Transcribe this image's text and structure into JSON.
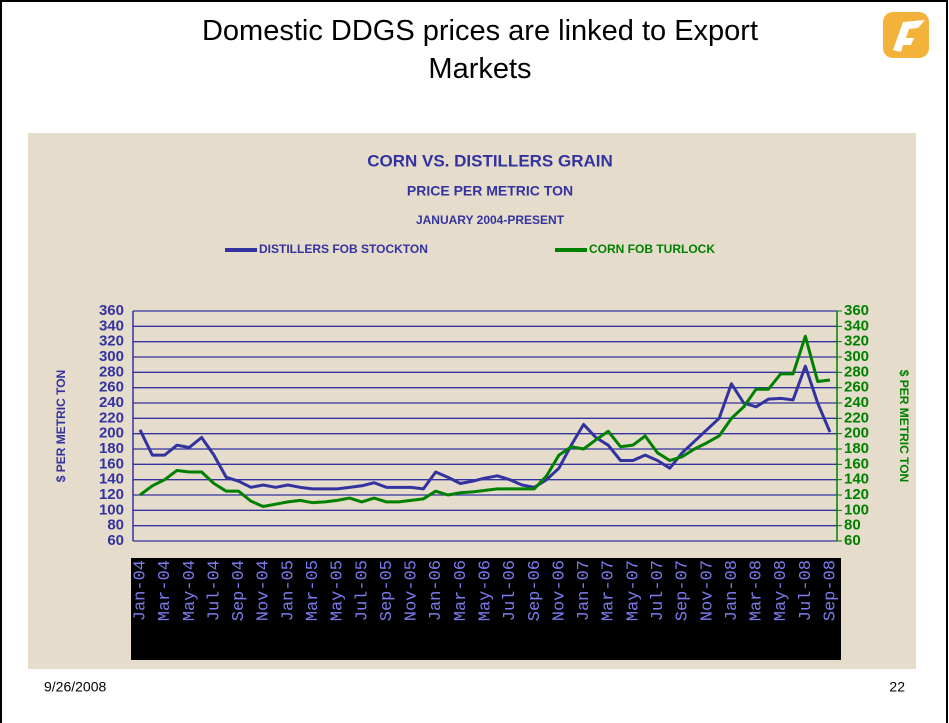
{
  "slide": {
    "title": "Domestic DDGS prices are linked to Export Markets",
    "date": "9/26/2008",
    "page_number": "22"
  },
  "chart_data": {
    "type": "line",
    "title": "CORN VS. DISTILLERS GRAIN",
    "subtitle": "PRICE PER METRIC TON",
    "period": "JANUARY 2004-PRESENT",
    "y_label": "$ PER METRIC TON",
    "y2_label": "$ PER METRIC TON",
    "categories": [
      "Jan-04",
      null,
      "Mar-04",
      null,
      "May-04",
      null,
      "Jul-04",
      null,
      "Sep-04",
      null,
      "Nov-04",
      null,
      "Jan-05",
      null,
      "Mar-05",
      null,
      "May-05",
      null,
      "Jul-05",
      null,
      "Sep-05",
      null,
      "Nov-05",
      null,
      "Jan-06",
      null,
      "Mar-06",
      null,
      "May-06",
      null,
      "Jul-06",
      null,
      "Sep-06",
      null,
      "Nov-06",
      null,
      "Jan-07",
      null,
      "Mar-07",
      null,
      "May-07",
      null,
      "Jul-07",
      null,
      "Sep-07",
      null,
      "Nov-07",
      null,
      "Jan-08",
      null,
      "Mar-08",
      null,
      "May-08",
      null,
      "Jul-08",
      null,
      "Sep-08"
    ],
    "series": [
      {
        "name": "DISTILLERS FOB STOCKTON",
        "color": "#3333a0",
        "values": [
          205,
          172,
          172,
          185,
          182,
          195,
          172,
          143,
          138,
          130,
          133,
          130,
          133,
          130,
          128,
          128,
          128,
          130,
          132,
          136,
          130,
          130,
          130,
          128,
          150,
          143,
          135,
          138,
          142,
          145,
          140,
          133,
          130,
          140,
          155,
          185,
          212,
          195,
          185,
          165,
          165,
          172,
          165,
          155,
          175,
          190,
          205,
          220,
          265,
          240,
          235,
          245,
          246,
          244,
          288,
          240,
          202
        ]
      },
      {
        "name": "CORN FOB TURLOCK",
        "color": "#008000",
        "axis": "y2",
        "values": [
          120,
          132,
          140,
          152,
          150,
          150,
          135,
          125,
          125,
          112,
          105,
          108,
          111,
          113,
          110,
          111,
          113,
          116,
          111,
          116,
          111,
          111,
          113,
          115,
          125,
          120,
          123,
          124,
          126,
          128,
          128,
          128,
          128,
          145,
          172,
          183,
          180,
          192,
          203,
          183,
          185,
          197,
          175,
          165,
          170,
          180,
          188,
          197,
          220,
          235,
          258,
          258,
          278,
          278,
          327,
          268,
          270
        ]
      }
    ],
    "ylim": [
      60,
      360
    ],
    "yticks": [
      60,
      80,
      100,
      120,
      140,
      160,
      180,
      200,
      220,
      240,
      260,
      280,
      300,
      320,
      340,
      360
    ],
    "y2lim": [
      60,
      360
    ],
    "y2ticks": [
      60,
      80,
      100,
      120,
      140,
      160,
      180,
      200,
      220,
      240,
      260,
      280,
      300,
      320,
      340,
      360
    ],
    "grid": true
  }
}
